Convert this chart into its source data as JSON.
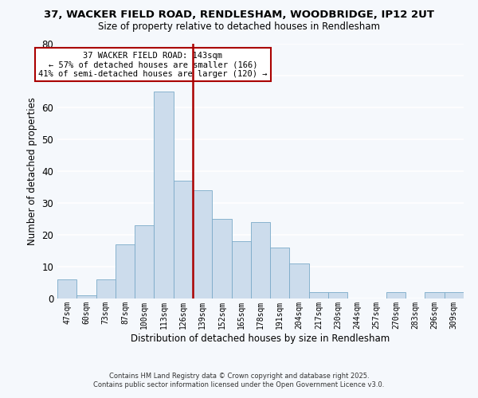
{
  "title": "37, WACKER FIELD ROAD, RENDLESHAM, WOODBRIDGE, IP12 2UT",
  "subtitle": "Size of property relative to detached houses in Rendlesham",
  "xlabel": "Distribution of detached houses by size in Rendlesham",
  "ylabel": "Number of detached properties",
  "categories": [
    "47sqm",
    "60sqm",
    "73sqm",
    "87sqm",
    "100sqm",
    "113sqm",
    "126sqm",
    "139sqm",
    "152sqm",
    "165sqm",
    "178sqm",
    "191sqm",
    "204sqm",
    "217sqm",
    "230sqm",
    "244sqm",
    "257sqm",
    "270sqm",
    "283sqm",
    "296sqm",
    "309sqm"
  ],
  "bar_values": [
    6,
    1,
    6,
    17,
    23,
    65,
    37,
    34,
    25,
    18,
    24,
    16,
    11,
    2,
    2,
    0,
    0,
    2,
    0,
    2,
    2
  ],
  "bar_color": "#ccdcec",
  "bar_edge_color": "#7aaac8",
  "background_color": "#f5f8fc",
  "grid_color": "#ffffff",
  "ylim": [
    0,
    80
  ],
  "yticks": [
    0,
    10,
    20,
    30,
    40,
    50,
    60,
    70,
    80
  ],
  "vline_color": "#aa0000",
  "annotation_title": "37 WACKER FIELD ROAD: 143sqm",
  "annotation_line1": "← 57% of detached houses are smaller (166)",
  "annotation_line2": "41% of semi-detached houses are larger (120) →",
  "annotation_box_color": "#ffffff",
  "annotation_border_color": "#aa0000",
  "footer_line1": "Contains HM Land Registry data © Crown copyright and database right 2025.",
  "footer_line2": "Contains public sector information licensed under the Open Government Licence v3.0."
}
